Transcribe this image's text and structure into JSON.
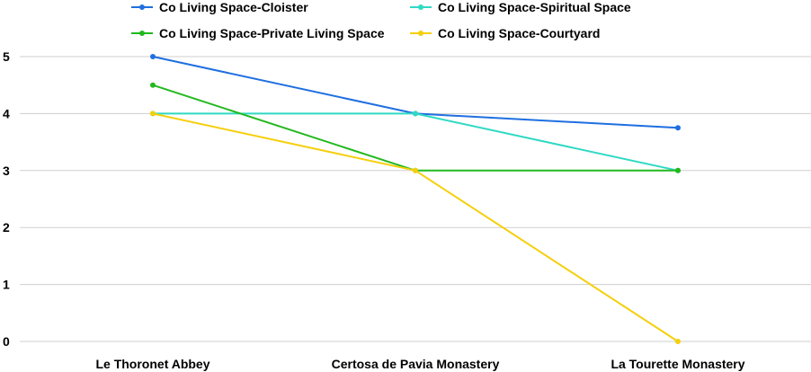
{
  "chart_data": {
    "type": "line",
    "categories": [
      "Le Thoronet Abbey",
      "Certosa de Pavia Monastery",
      "La Tourette Monastery"
    ],
    "series": [
      {
        "name": "Co Living Space-Cloister",
        "values": [
          5,
          4,
          3.75
        ],
        "color": "#1f6fe0"
      },
      {
        "name": "Co Living Space-Spiritual Space",
        "values": [
          4,
          4,
          3
        ],
        "color": "#2fd9c4"
      },
      {
        "name": "Co Living Space-Private Living Space",
        "values": [
          4.5,
          3,
          3
        ],
        "color": "#22b81e"
      },
      {
        "name": "Co Living Space-Courtyard",
        "values": [
          4,
          3,
          0
        ],
        "color": "#f5cf0c"
      }
    ],
    "yticks": [
      "0",
      "1",
      "2",
      "3",
      "4",
      "5"
    ],
    "ylim": [
      0,
      5
    ],
    "grid": true,
    "legend": "top"
  }
}
